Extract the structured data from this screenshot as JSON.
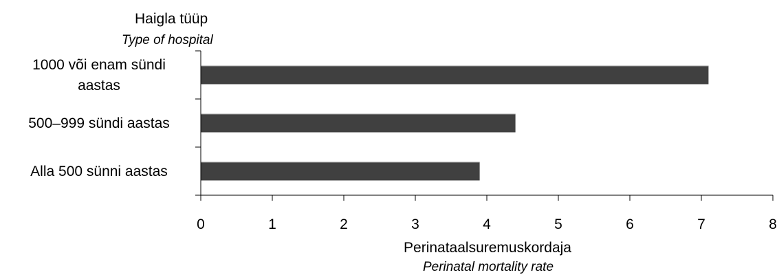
{
  "chart_data": {
    "type": "bar",
    "orientation": "horizontal",
    "ylabel": "Haigla tüüp",
    "ylabel_en": "Type of hospital",
    "xlabel": "Perinataalsuremuskordaja",
    "xlabel_en": "Perinatal mortality rate",
    "categories": [
      [
        "1000 või enam sündi",
        "aastas"
      ],
      [
        "500–999 sündi aastas"
      ],
      [
        "Alla 500 sünni aastas"
      ]
    ],
    "values": [
      7.1,
      4.4,
      3.9
    ],
    "xlim": [
      0,
      8
    ],
    "xticks": [
      "0",
      "1",
      "2",
      "3",
      "4",
      "5",
      "6",
      "7",
      "8"
    ],
    "grid": false,
    "legend": "none",
    "colors": {
      "bar": "#404040",
      "bar_highlight": "#9a9a9a",
      "axis": "#000000"
    }
  }
}
